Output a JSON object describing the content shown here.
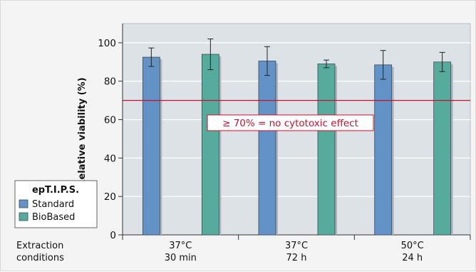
{
  "chart_data": {
    "type": "bar",
    "ylabel": "Relative viability (%)",
    "ylim": [
      0,
      110
    ],
    "yticks": [
      0,
      20,
      40,
      60,
      80,
      100
    ],
    "x_title": [
      "Extraction",
      "conditions"
    ],
    "categories": [
      [
        "37°C",
        "30 min"
      ],
      [
        "37°C",
        "72 h"
      ],
      [
        "50°C",
        "24 h"
      ]
    ],
    "series": [
      {
        "name": "Standard",
        "color": "#6392c6",
        "values": [
          92.5,
          90.5,
          88.5
        ],
        "errors": [
          4.8,
          7.5,
          7.5
        ]
      },
      {
        "name": "BioBased",
        "color": "#56ab9c",
        "values": [
          94.0,
          89.0,
          90.0
        ],
        "errors": [
          8.0,
          2.0,
          5.0
        ]
      }
    ],
    "threshold": {
      "value": 70,
      "color": "#c8102e",
      "label": "≥ 70% = no cytotoxic effect"
    },
    "legend": {
      "title": "epT.I.P.S.",
      "position": "bottom-left"
    },
    "grid": true,
    "plot_background": "#dde2e6"
  }
}
